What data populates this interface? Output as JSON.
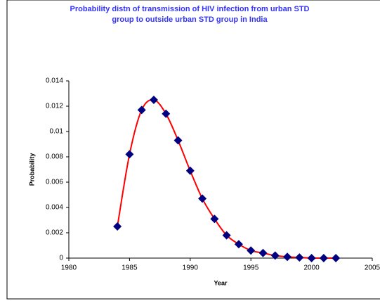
{
  "chart_data": {
    "type": "scatter",
    "title": [
      "Probability distn of transmission of HIV infection from urban STD",
      "group to outside urban STD group in India"
    ],
    "x_label": "Year",
    "y_label": "Probability",
    "x": [
      1984,
      1985,
      1986,
      1987,
      1988,
      1989,
      1990,
      1991,
      1992,
      1993,
      1994,
      1995,
      1996,
      1997,
      1998,
      1999,
      2000,
      2001,
      2002
    ],
    "values": [
      0.0025,
      0.0082,
      0.0117,
      0.0125,
      0.0114,
      0.0093,
      0.0069,
      0.0047,
      0.0031,
      0.0018,
      0.0011,
      0.0006,
      0.0004,
      0.0002,
      0.0001,
      5e-05,
      0,
      0,
      0
    ],
    "line_color": "#ff0000",
    "marker_color": "#000080",
    "xlim": [
      1980,
      2005
    ],
    "xticks": [
      1980,
      1985,
      1990,
      1995,
      2000,
      2005
    ],
    "ylim": [
      0,
      0.014
    ],
    "yticks": [
      0,
      0.002,
      0.004,
      0.006,
      0.008,
      0.01,
      0.012,
      0.014
    ],
    "grid": false
  }
}
